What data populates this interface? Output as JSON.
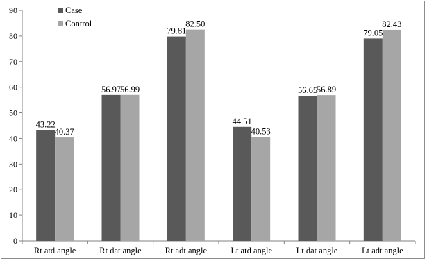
{
  "chart_data": {
    "type": "bar",
    "categories": [
      "Rt atd angle",
      "Rt dat angle",
      "Rt adt angle",
      "Lt  atd angle",
      "Lt  dat angle",
      "Lt  adt angle"
    ],
    "series": [
      {
        "name": "Case",
        "values": [
          43.22,
          56.97,
          79.81,
          44.51,
          56.65,
          79.05
        ],
        "color": "#595959"
      },
      {
        "name": "Control",
        "values": [
          40.37,
          56.99,
          82.5,
          40.53,
          56.89,
          82.43
        ],
        "color": "#a6a6a6"
      }
    ],
    "value_labels": [
      [
        "43.22",
        "56.97",
        "79.81",
        "44.51",
        "56.65",
        "79.05"
      ],
      [
        "40.37",
        "56.99",
        "82.50",
        "40.53",
        "56.89",
        "82.43"
      ]
    ],
    "ylim": [
      0,
      90
    ],
    "y_ticks": [
      0,
      10,
      20,
      30,
      40,
      50,
      60,
      70,
      80,
      90
    ],
    "grid": false,
    "legend_position": "top-left"
  }
}
